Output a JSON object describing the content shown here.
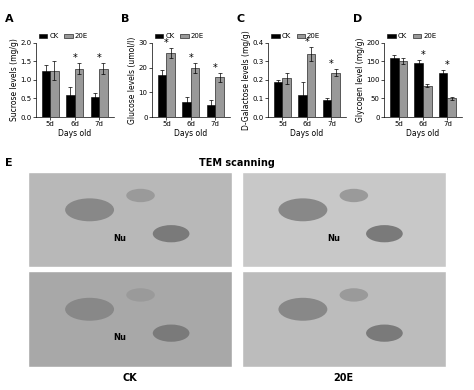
{
  "chart_data": [
    {
      "type": "bar",
      "panel": "A",
      "xlabel": "Days old",
      "ylabel": "Sucrose levels (mg/g)",
      "categories": [
        "5d",
        "6d",
        "7d"
      ],
      "series": [
        {
          "name": "CK",
          "color": "#000000",
          "values": [
            1.25,
            0.6,
            0.55
          ],
          "errors": [
            0.15,
            0.2,
            0.1
          ]
        },
        {
          "name": "20E",
          "color": "#999999",
          "values": [
            1.25,
            1.3,
            1.3
          ],
          "errors": [
            0.25,
            0.15,
            0.15
          ]
        }
      ],
      "ylim": [
        0,
        2.0
      ],
      "yticks": [
        {
          "value": 0,
          "label": "0.0"
        },
        {
          "value": 0.5,
          "label": "0.5"
        },
        {
          "value": 1.0,
          "label": "1.0"
        },
        {
          "value": 1.5,
          "label": "1.5"
        },
        {
          "value": 2.0,
          "label": "2.0"
        }
      ],
      "legend": "upper left",
      "annotations": [
        {
          "text": "*",
          "category": "6d"
        },
        {
          "text": "*",
          "category": "7d"
        }
      ]
    },
    {
      "type": "bar",
      "panel": "B",
      "xlabel": "Days old",
      "ylabel": "Glucose levels (umol/l)",
      "categories": [
        "5d",
        "6d",
        "7d"
      ],
      "series": [
        {
          "name": "CK",
          "color": "#000000",
          "values": [
            17,
            6,
            5
          ],
          "errors": [
            2,
            2,
            2
          ]
        },
        {
          "name": "20E",
          "color": "#999999",
          "values": [
            26,
            20,
            16
          ],
          "errors": [
            2,
            2,
            2
          ]
        }
      ],
      "ylim": [
        0,
        30
      ],
      "yticks": [
        0,
        10,
        20,
        30
      ],
      "legend": "upper left",
      "annotations": [
        {
          "text": "*",
          "category": "5d"
        },
        {
          "text": "*",
          "category": "6d"
        },
        {
          "text": "*",
          "category": "7d"
        }
      ]
    },
    {
      "type": "bar",
      "panel": "C",
      "xlabel": "Days old",
      "ylabel": "D-Galactose levels (mg/g)",
      "categories": [
        "5d",
        "6d",
        "7d"
      ],
      "series": [
        {
          "name": "CK",
          "color": "#000000",
          "values": [
            0.19,
            0.12,
            0.09
          ],
          "errors": [
            0.01,
            0.07,
            0.01
          ]
        },
        {
          "name": "20E",
          "color": "#999999",
          "values": [
            0.21,
            0.34,
            0.24
          ],
          "errors": [
            0.03,
            0.04,
            0.02
          ]
        }
      ],
      "ylim": [
        0,
        0.4
      ],
      "yticks": [
        {
          "value": 0,
          "label": "0.0"
        },
        {
          "value": 0.1,
          "label": "0.1"
        },
        {
          "value": 0.2,
          "label": "0.2"
        },
        {
          "value": 0.3,
          "label": "0.3"
        },
        {
          "value": 0.4,
          "label": "0.4"
        }
      ],
      "legend": "upper left",
      "annotations": [
        {
          "text": "*",
          "category": "6d"
        },
        {
          "text": "*",
          "category": "7d"
        }
      ]
    },
    {
      "type": "bar",
      "panel": "D",
      "xlabel": "Days old",
      "ylabel": "Glycogen level (mg/g)",
      "categories": [
        "5d",
        "6d",
        "7d"
      ],
      "series": [
        {
          "name": "CK",
          "color": "#000000",
          "values": [
            160,
            145,
            120
          ],
          "errors": [
            8,
            8,
            8
          ]
        },
        {
          "name": "20E",
          "color": "#999999",
          "values": [
            150,
            85,
            50
          ],
          "errors": [
            8,
            5,
            5
          ]
        }
      ],
      "ylim": [
        0,
        200
      ],
      "yticks": [
        0,
        50,
        100,
        150,
        200
      ],
      "legend": "upper left",
      "annotations": [
        {
          "text": "*",
          "category": "6d"
        },
        {
          "text": "*",
          "category": "7d"
        }
      ]
    }
  ],
  "panel_E": {
    "panel": "E",
    "title": "TEM scanning",
    "images": [
      {
        "labels": [
          "Nu"
        ]
      },
      {
        "labels": [
          "Nu"
        ]
      },
      {
        "labels": [
          "Nu"
        ]
      },
      {
        "labels": []
      }
    ],
    "column_labels": [
      "CK",
      "20E"
    ]
  }
}
